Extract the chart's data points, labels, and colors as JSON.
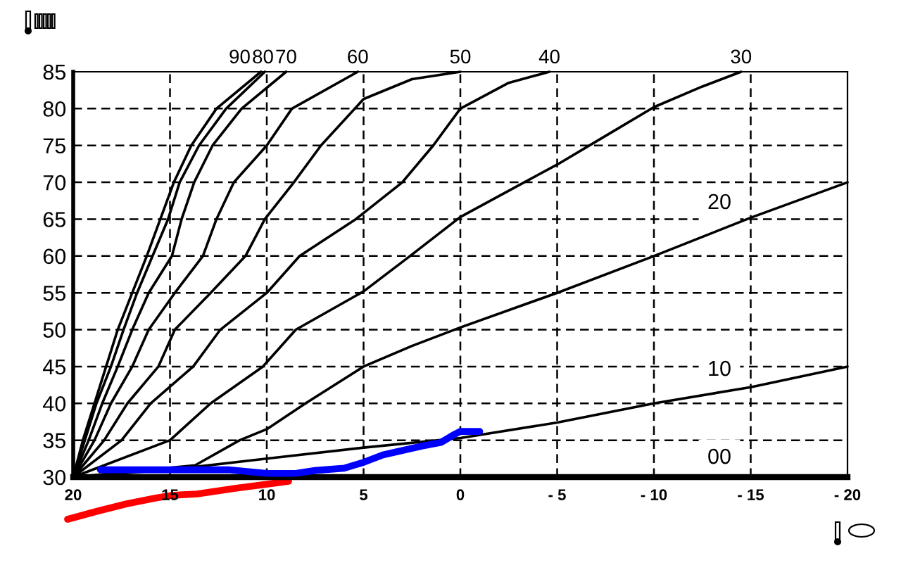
{
  "chart_data": {
    "type": "line",
    "series": [
      {
        "name": "90",
        "color": "#000000",
        "x": [
          20,
          19.5,
          18.9,
          18.3,
          17.7,
          16.95,
          16.2,
          15.5,
          14.8,
          13.9,
          12.6,
          10.3
        ],
        "values": [
          30,
          35,
          40,
          45,
          50,
          55,
          60,
          65,
          70,
          75,
          80,
          85
        ]
      },
      {
        "name": "80",
        "color": "#000000",
        "x": [
          20,
          19.4,
          18.8,
          18.05,
          17.4,
          16.7,
          15.9,
          15.1,
          14.5,
          13.5,
          12.1,
          10.1
        ],
        "values": [
          30,
          35,
          40,
          45,
          50,
          55,
          60,
          65,
          70,
          75,
          80,
          85
        ]
      },
      {
        "name": "70",
        "color": "#000000",
        "x": [
          20,
          19.2,
          18.5,
          17.7,
          16.95,
          16.1,
          14.9,
          14.4,
          13.75,
          12.8,
          11.3,
          9.0
        ],
        "values": [
          30,
          35,
          40,
          45,
          50,
          55,
          60,
          65,
          70,
          75,
          80,
          85
        ]
      },
      {
        "name": "60",
        "color": "#000000",
        "x": [
          20,
          18.9,
          18.05,
          16.95,
          16.1,
          14.75,
          13.3,
          12.6,
          11.7,
          10.0,
          8.7,
          5.3
        ],
        "values": [
          30,
          35,
          40,
          45,
          50,
          55,
          60,
          65,
          70,
          75,
          80,
          85
        ]
      },
      {
        "name": "50",
        "color": "#000000",
        "x": [
          20,
          18.4,
          17.2,
          15.6,
          14.75,
          12.9,
          11.1,
          10.1,
          8.6,
          7.2,
          5.0,
          2.5,
          0
        ],
        "values": [
          30,
          35,
          40,
          45,
          50,
          55,
          60,
          65,
          70,
          75,
          81.3,
          84,
          85
        ]
      },
      {
        "name": "40",
        "color": "#000000",
        "x": [
          20,
          17.5,
          16.0,
          13.8,
          12.4,
          10.0,
          8.3,
          5.4,
          3.0,
          1.4,
          0,
          -2.5,
          -4.6
        ],
        "values": [
          30,
          35,
          40,
          45,
          50,
          55,
          60,
          65,
          70,
          75,
          80,
          83.5,
          85
        ]
      },
      {
        "name": "30",
        "color": "#000000",
        "x": [
          20,
          15,
          12.9,
          10.2,
          8.5,
          5,
          2.6,
          0,
          -3.3,
          -5,
          -7.5,
          -10,
          -12.5,
          -14.5
        ],
        "values": [
          30,
          35,
          40,
          45,
          50,
          55.2,
          60,
          65.3,
          70,
          72.4,
          76.3,
          80.2,
          83,
          85
        ]
      },
      {
        "name": "20",
        "color": "#000000",
        "x": [
          20,
          16,
          13.7,
          11.4,
          10,
          8,
          5,
          2.5,
          0,
          -5,
          -10,
          -15,
          -20
        ],
        "values": [
          30,
          31,
          31.6,
          35,
          36.5,
          40,
          45,
          47.8,
          50.3,
          55,
          60,
          65.2,
          70
        ]
      },
      {
        "name": "10",
        "color": "#000000",
        "x": [
          20,
          15,
          10,
          5,
          0,
          -5,
          -10,
          -15,
          -20
        ],
        "values": [
          30,
          31,
          32.5,
          34,
          35.3,
          37.4,
          40,
          42.2,
          45
        ]
      },
      {
        "name": "00",
        "color": "#000000",
        "x": [
          20,
          -20
        ],
        "values": [
          30,
          30
        ]
      },
      {
        "color": "#0000ff",
        "x": [
          18.6,
          15,
          12,
          10,
          8.5,
          7.5,
          6,
          5,
          4,
          2,
          1,
          0.3,
          0,
          -1
        ],
        "values": [
          31,
          31,
          31,
          30.5,
          30.5,
          30.9,
          31.2,
          32,
          33,
          34.2,
          34.7,
          35.8,
          36.2,
          36.2
        ]
      }
    ],
    "xlim": [
      20,
      -20
    ],
    "ylim": [
      30,
      85
    ],
    "xticks": [
      20,
      15,
      10,
      5,
      0,
      {
        "value": -5,
        "label": "- 5"
      },
      {
        "value": -10,
        "label": "- 10"
      },
      {
        "value": -15,
        "label": "- 15"
      },
      {
        "value": -20,
        "label": "- 20"
      }
    ],
    "yticks": [
      30,
      35,
      40,
      45,
      50,
      55,
      60,
      65,
      70,
      75,
      80,
      85
    ],
    "grid": true,
    "marker": "none",
    "line_style": "solid"
  }
}
